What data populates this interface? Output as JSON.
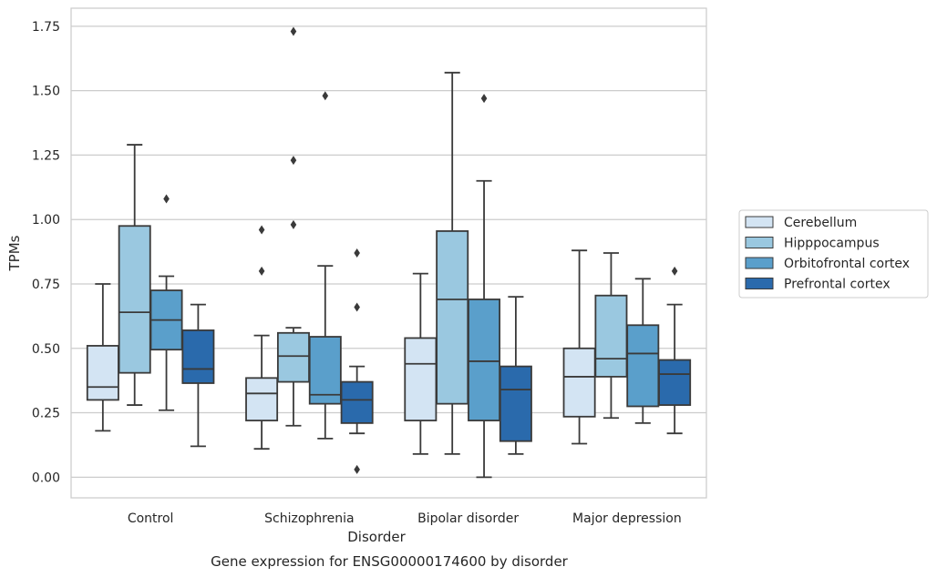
{
  "chart_data": {
    "type": "boxplot",
    "title": "",
    "caption": "Gene expression for ENSG00000174600 by disorder",
    "xlabel": "Disorder",
    "ylabel": "TPMs",
    "ylim": [
      -0.08,
      1.82
    ],
    "yticks": [
      "0.00",
      "0.25",
      "0.50",
      "0.75",
      "1.00",
      "1.25",
      "1.50",
      "1.75"
    ],
    "grid": "horizontal",
    "legend_position": "right",
    "categories": [
      "Control",
      "Schizophrenia",
      "Bipolar disorder",
      "Major depression"
    ],
    "series": [
      {
        "name": "Cerebellum",
        "color": "#d3e4f3",
        "boxes": [
          {
            "whislo": 0.18,
            "q1": 0.3,
            "med": 0.35,
            "q3": 0.51,
            "whishi": 0.75,
            "fliers": []
          },
          {
            "whislo": 0.11,
            "q1": 0.22,
            "med": 0.325,
            "q3": 0.385,
            "whishi": 0.55,
            "fliers": [
              0.8,
              0.96
            ]
          },
          {
            "whislo": 0.09,
            "q1": 0.22,
            "med": 0.44,
            "q3": 0.54,
            "whishi": 0.79,
            "fliers": []
          },
          {
            "whislo": 0.13,
            "q1": 0.235,
            "med": 0.39,
            "q3": 0.5,
            "whishi": 0.88,
            "fliers": []
          }
        ]
      },
      {
        "name": "Hipppocampus",
        "color": "#9ac8e0",
        "boxes": [
          {
            "whislo": 0.28,
            "q1": 0.405,
            "med": 0.64,
            "q3": 0.975,
            "whishi": 1.29,
            "fliers": []
          },
          {
            "whislo": 0.2,
            "q1": 0.37,
            "med": 0.47,
            "q3": 0.56,
            "whishi": 0.58,
            "fliers": [
              0.98,
              1.23,
              1.73
            ]
          },
          {
            "whislo": 0.09,
            "q1": 0.285,
            "med": 0.69,
            "q3": 0.955,
            "whishi": 1.57,
            "fliers": []
          },
          {
            "whislo": 0.23,
            "q1": 0.39,
            "med": 0.46,
            "q3": 0.705,
            "whishi": 0.87,
            "fliers": []
          }
        ]
      },
      {
        "name": "Orbitofrontal cortex",
        "color": "#5a9fcb",
        "boxes": [
          {
            "whislo": 0.26,
            "q1": 0.495,
            "med": 0.61,
            "q3": 0.725,
            "whishi": 0.78,
            "fliers": [
              1.08
            ]
          },
          {
            "whislo": 0.15,
            "q1": 0.285,
            "med": 0.32,
            "q3": 0.545,
            "whishi": 0.82,
            "fliers": [
              1.48
            ]
          },
          {
            "whislo": 0.0,
            "q1": 0.22,
            "med": 0.45,
            "q3": 0.69,
            "whishi": 1.15,
            "fliers": [
              1.47
            ]
          },
          {
            "whislo": 0.21,
            "q1": 0.275,
            "med": 0.48,
            "q3": 0.59,
            "whishi": 0.77,
            "fliers": []
          }
        ]
      },
      {
        "name": "Prefrontal cortex",
        "color": "#2a6aac",
        "boxes": [
          {
            "whislo": 0.12,
            "q1": 0.365,
            "med": 0.42,
            "q3": 0.57,
            "whishi": 0.67,
            "fliers": []
          },
          {
            "whislo": 0.17,
            "q1": 0.21,
            "med": 0.3,
            "q3": 0.37,
            "whishi": 0.43,
            "fliers": [
              0.03,
              0.66,
              0.87
            ]
          },
          {
            "whislo": 0.09,
            "q1": 0.14,
            "med": 0.34,
            "q3": 0.43,
            "whishi": 0.7,
            "fliers": []
          },
          {
            "whislo": 0.17,
            "q1": 0.28,
            "med": 0.4,
            "q3": 0.455,
            "whishi": 0.67,
            "fliers": [
              0.8
            ]
          }
        ]
      }
    ]
  }
}
